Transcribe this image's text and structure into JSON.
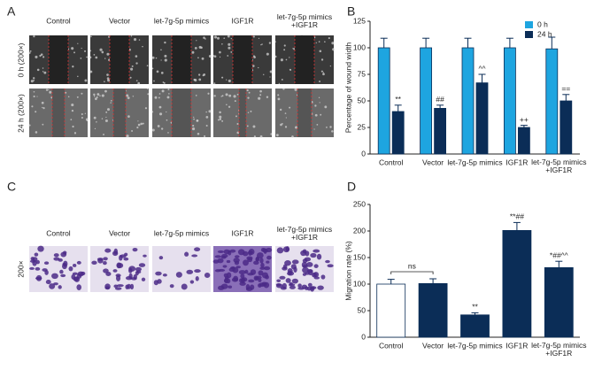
{
  "panel_letters": [
    "A",
    "B",
    "C",
    "D"
  ],
  "image_columns": [
    "Control",
    "Vector",
    "let-7g-5p mimics",
    "IGF1R",
    "let-7g-5p mimics\n+IGF1R"
  ],
  "panel_a_rows": [
    "0 h (200×)",
    "24 h (200×)"
  ],
  "panel_c_row": "200×",
  "chart_data": [
    {
      "type": "bar",
      "y_label": "Percentage of wound width",
      "categories": [
        "Control",
        "Vector",
        "let-7g-5p mimics",
        "IGF1R",
        "let-7g-5p mimics\n+IGF1R"
      ],
      "series": [
        {
          "name": "0 h",
          "color": "#1ea5e0",
          "values": [
            100,
            100,
            100,
            100,
            99
          ],
          "errors": [
            9,
            9,
            9,
            9,
            11
          ]
        },
        {
          "name": "24 h",
          "color": "#0b2d57",
          "values": [
            40,
            43,
            67,
            25,
            50
          ],
          "errors": [
            6,
            3,
            8,
            2,
            6
          ],
          "annotations": [
            "**",
            "##",
            "^^",
            "++",
            "=="
          ]
        }
      ],
      "ylim": [
        0,
        125
      ],
      "yticks": [
        0,
        25,
        50,
        75,
        100,
        125
      ],
      "legend": "top-right"
    },
    {
      "type": "bar",
      "y_label": "Migration rate (%)",
      "categories": [
        "Control",
        "Vector",
        "let-7g-5p mimics",
        "IGF1R",
        "let-7g-5p mimics\n+IGF1R"
      ],
      "values": [
        100,
        101,
        42,
        201,
        131
      ],
      "errors": [
        9,
        9,
        4,
        15,
        12
      ],
      "colors": [
        "#ffffff",
        "#0b2d57",
        "#0b2d57",
        "#0b2d57",
        "#0b2d57"
      ],
      "annotations": [
        null,
        null,
        "**",
        "**##",
        "*##^^"
      ],
      "bracket_label": "ns",
      "ylim": [
        0,
        250
      ],
      "yticks": [
        0,
        50,
        100,
        150,
        200,
        250
      ]
    }
  ]
}
